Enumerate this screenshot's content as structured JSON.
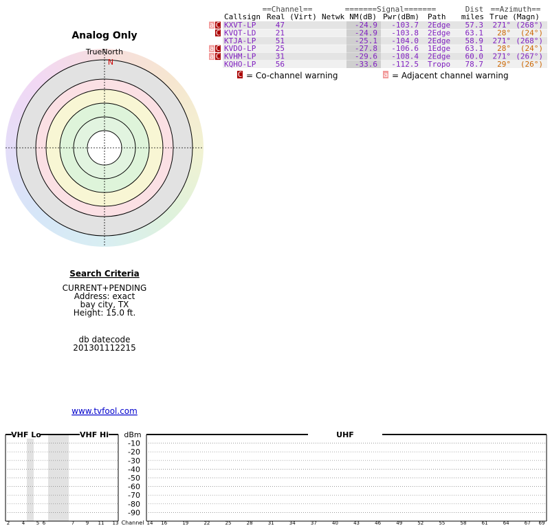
{
  "report_title": "Analog Only",
  "compass": {
    "label": "TrueNorth",
    "north": "N"
  },
  "search_criteria": {
    "heading": "Search Criteria",
    "lines": [
      "CURRENT+PENDING",
      "Address: exact",
      "bay city, TX",
      "Height: 15.0 ft."
    ],
    "datecode_label": "db datecode",
    "datecode": "201301112215"
  },
  "link": "www.tvfool.com",
  "table": {
    "group_headers": [
      "==Channel==",
      "=======Signal=======",
      "Dist",
      "==Azimuth=="
    ],
    "columns": [
      "Callsign",
      "Real (Virt)",
      "Netwk",
      "NM(dB)",
      "Pwr(dBm)",
      "Path",
      "miles",
      "True (Magn)"
    ],
    "rows": [
      {
        "flags": [
          "a",
          "C"
        ],
        "callsign": "KXVT-LP",
        "real": "47",
        "nm": "-24.9",
        "pwr": "-103.7",
        "path": "2Edge",
        "dist": "57.3",
        "true": "271°",
        "magn": "(268°)"
      },
      {
        "flags": [
          "C"
        ],
        "callsign": "KVQT-LD",
        "real": "21",
        "nm": "-24.9",
        "pwr": "-103.8",
        "path": "2Edge",
        "dist": "63.1",
        "true": "28°",
        "magn": "(24°)"
      },
      {
        "flags": [],
        "callsign": "KTJA-LP",
        "real": "51",
        "nm": "-25.1",
        "pwr": "-104.0",
        "path": "2Edge",
        "dist": "58.9",
        "true": "271°",
        "magn": "(268°)"
      },
      {
        "flags": [
          "a",
          "C"
        ],
        "callsign": "KVDO-LP",
        "real": "25",
        "nm": "-27.8",
        "pwr": "-106.6",
        "path": "1Edge",
        "dist": "63.1",
        "true": "28°",
        "magn": "(24°)"
      },
      {
        "flags": [
          "a",
          "C"
        ],
        "callsign": "KVHM-LP",
        "real": "31",
        "nm": "-29.6",
        "pwr": "-108.4",
        "path": "2Edge",
        "dist": "60.0",
        "true": "271°",
        "magn": "(267°)"
      },
      {
        "flags": [],
        "callsign": "KQHO-LP",
        "real": "56",
        "nm": "-33.6",
        "pwr": "-112.5",
        "path": "Tropo",
        "dist": "78.7",
        "true": "29°",
        "magn": "(26°)"
      }
    ]
  },
  "legend": {
    "co_flag": "C",
    "co_text": "= Co-channel warning",
    "adj_flag": "a",
    "adj_text": "= Adjacent channel warning"
  },
  "spectrum": {
    "bands": [
      "VHF Lo",
      "VHF Hi",
      "UHF"
    ],
    "unit": "dBm",
    "ylim": [
      -100,
      0
    ],
    "yticks": [
      -10,
      -20,
      -30,
      -40,
      -50,
      -60,
      -70,
      -80,
      -90
    ],
    "axis_label": "Channel",
    "vhf_channels": [
      2,
      4,
      5,
      6,
      7,
      9,
      11,
      13
    ],
    "uhf_xlim": [
      14,
      69
    ],
    "uhf_channels": [
      14,
      16,
      19,
      22,
      25,
      28,
      31,
      34,
      37,
      40,
      43,
      46,
      49,
      52,
      55,
      58,
      61,
      64,
      67,
      69
    ]
  }
}
